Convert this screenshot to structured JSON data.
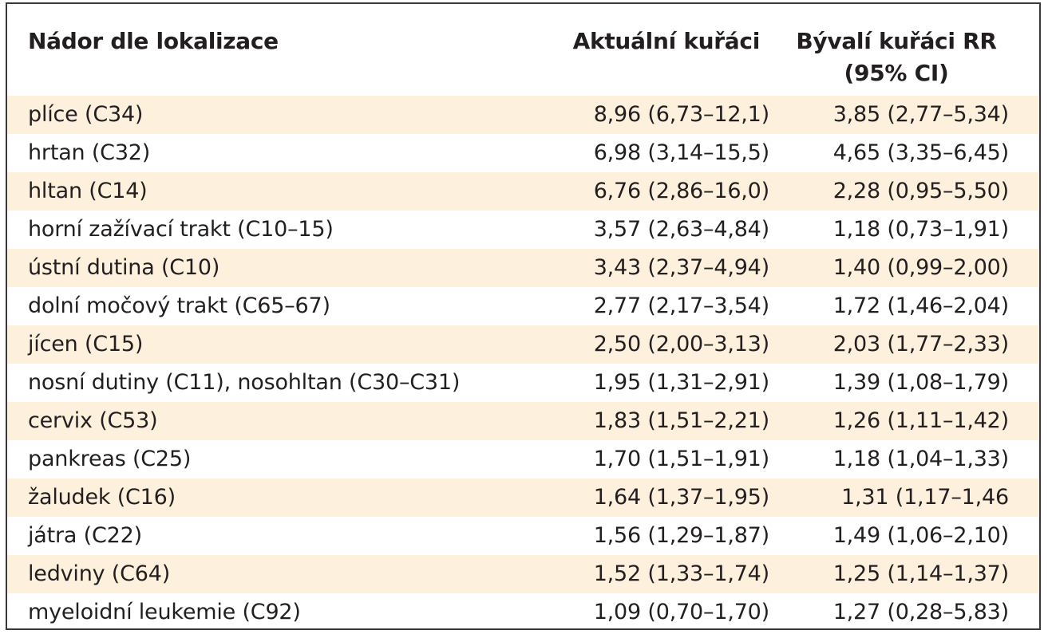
{
  "table": {
    "headers": {
      "location": "Nádor dle lokalizace",
      "current": "Aktuální kuřáci",
      "former_line1": "Bývalí kuřáci RR",
      "former_line2": "(95% CI)"
    },
    "rows": [
      {
        "location": "plíce (C34)",
        "current": "8,96 (6,73–12,1)",
        "former": "3,85 (2,77–5,34)"
      },
      {
        "location": "hrtan (C32)",
        "current": "6,98 (3,14–15,5)",
        "former": "4,65 (3,35–6,45)"
      },
      {
        "location": "hltan (C14)",
        "current": "6,76 (2,86–16,0)",
        "former": "2,28 (0,95–5,50)"
      },
      {
        "location": "horní zažívací trakt (C10–15)",
        "current": "3,57 (2,63–4,84)",
        "former": "1,18 (0,73–1,91)"
      },
      {
        "location": "ústní dutina (C10)",
        "current": "3,43 (2,37–4,94)",
        "former": "1,40 (0,99–2,00)"
      },
      {
        "location": "dolní močový trakt (C65–67)",
        "current": "2,77 (2,17–3,54)",
        "former": "1,72 (1,46–2,04)"
      },
      {
        "location": "jícen (C15)",
        "current": "2,50 (2,00–3,13)",
        "former": "2,03 (1,77–2,33)"
      },
      {
        "location": "nosní dutiny (C11), nosohltan (C30–C31)",
        "current": "1,95 (1,31–2,91)",
        "former": "1,39 (1,08–1,79)"
      },
      {
        "location": "cervix (C53)",
        "current": "1,83 (1,51–2,21)",
        "former": "1,26 (1,11–1,42)"
      },
      {
        "location": "pankreas (C25)",
        "current": "1,70 (1,51–1,91)",
        "former": "1,18 (1,04–1,33)"
      },
      {
        "location": "žaludek (C16)",
        "current": "1,64 (1,37–1,95)",
        "former": "1,31 (1,17–1,46"
      },
      {
        "location": "játra (C22)",
        "current": "1,56 (1,29–1,87)",
        "former": "1,49 (1,06–2,10)"
      },
      {
        "location": "ledviny (C64)",
        "current": "1,52 (1,33–1,74)",
        "former": "1,25 (1,14–1,37)"
      },
      {
        "location": "myeloidní leukemie (C92)",
        "current": "1,09 (0,70–1,70)",
        "former": "1,27 (0,28–5,83)"
      }
    ]
  }
}
